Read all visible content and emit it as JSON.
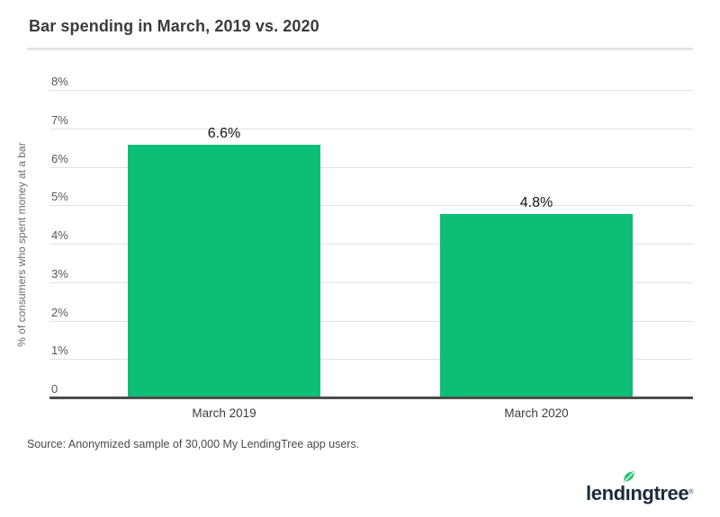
{
  "header": {
    "title": "Bar spending in March, 2019 vs. 2020"
  },
  "chart_data": {
    "type": "bar",
    "title": "Bar spending in March, 2019 vs. 2020",
    "categories": [
      "March 2019",
      "March 2020"
    ],
    "values": [
      6.6,
      4.8
    ],
    "value_labels": [
      "6.6%",
      "4.8%"
    ],
    "xlabel": "",
    "ylabel": "% of consumers who spent money at a bar",
    "ylim": [
      0,
      8
    ],
    "yticks": [
      0,
      1,
      2,
      3,
      4,
      5,
      6,
      7,
      8
    ],
    "ytick_labels": [
      "0",
      "1%",
      "2%",
      "3%",
      "4%",
      "5%",
      "6%",
      "7%",
      "8%"
    ],
    "grid": true,
    "legend": false,
    "bar_color": "#0cbe76",
    "gridline_color": "#e1e1e1",
    "baseline_color": "#4d4d4d"
  },
  "footer": {
    "source": "Source: Anonymized sample of 30,000 My LendingTree app users.",
    "logo_text": "lendingtree",
    "logo_reg": "®",
    "logo_color": "#1b2b38",
    "leaf_color": "#29c270"
  }
}
